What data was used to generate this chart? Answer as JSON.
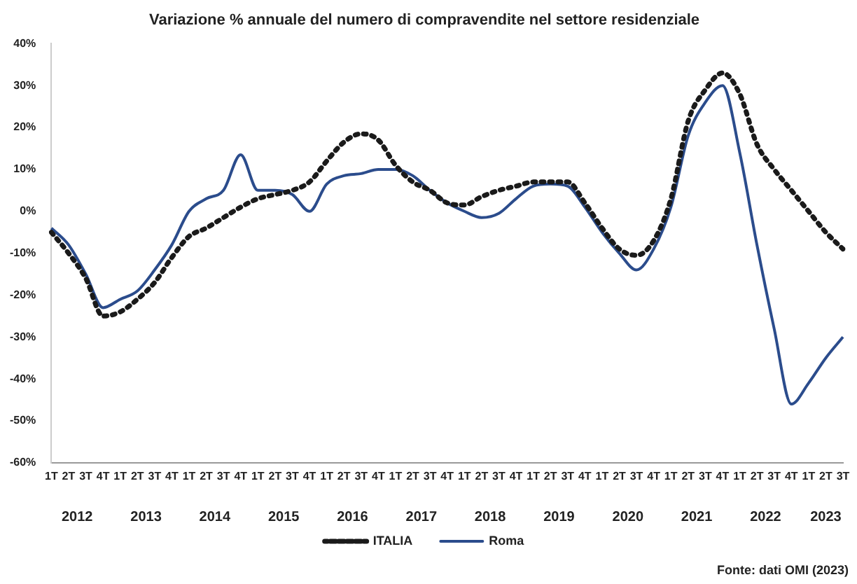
{
  "chart_data": {
    "type": "line",
    "title": "Variazione % annuale del numero di compravendite nel settore residenziale",
    "categories": [
      "1T",
      "2T",
      "3T",
      "4T",
      "1T",
      "2T",
      "3T",
      "4T",
      "1T",
      "2T",
      "3T",
      "4T",
      "1T",
      "2T",
      "3T",
      "4T",
      "1T",
      "2T",
      "3T",
      "4T",
      "1T",
      "2T",
      "3T",
      "4T",
      "1T",
      "2T",
      "3T",
      "4T",
      "1T",
      "2T",
      "3T",
      "4T",
      "1T",
      "2T",
      "3T",
      "4T",
      "1T",
      "2T",
      "3T",
      "4T",
      "1T",
      "2T",
      "3T",
      "4T",
      "1T",
      "2T",
      "3T"
    ],
    "series": [
      {
        "name": "ITALIA",
        "color": "#1a1a1a",
        "line_style": "dotted",
        "values": [
          -5,
          -10,
          -16,
          -25,
          -24,
          -21,
          -17,
          -11,
          -6,
          -4,
          -1.5,
          1,
          3,
          4,
          5,
          7,
          12,
          16.5,
          18.5,
          17,
          11,
          7,
          5,
          2,
          1.5,
          3.5,
          5,
          6,
          7,
          7,
          7,
          2,
          -4,
          -9,
          -10.5,
          -7,
          3,
          21.5,
          29,
          33,
          28,
          16,
          10,
          5,
          0,
          -5,
          -9
        ]
      },
      {
        "name": "Roma",
        "color": "#2b4c8c",
        "line_style": "solid",
        "values": [
          -4,
          -8,
          -15,
          -23,
          -21,
          -19,
          -14,
          -8,
          0,
          3,
          5,
          13.5,
          5,
          5,
          4,
          0,
          6.5,
          8.5,
          9,
          10,
          10,
          8.5,
          5,
          2,
          0,
          -1.5,
          -0.5,
          3,
          6,
          6.5,
          6,
          1,
          -5,
          -10,
          -14,
          -9,
          1,
          18,
          26,
          30,
          14,
          -8,
          -28,
          -46,
          -41,
          -35,
          -30
        ]
      }
    ],
    "ylim": [
      -60,
      40
    ],
    "yticks": [
      {
        "value": -60,
        "label": "-60%"
      },
      {
        "value": -50,
        "label": "-50%"
      },
      {
        "value": -40,
        "label": "-40%"
      },
      {
        "value": -30,
        "label": "-30%"
      },
      {
        "value": -20,
        "label": "-20%"
      },
      {
        "value": -10,
        "label": "-10%"
      },
      {
        "value": 0,
        "label": "0%"
      },
      {
        "value": 10,
        "label": "10%"
      },
      {
        "value": 20,
        "label": "20%"
      },
      {
        "value": 30,
        "label": "30%"
      },
      {
        "value": 40,
        "label": "40%"
      }
    ],
    "grid": false,
    "legend": "bottom",
    "marker": "none",
    "annotations": [
      "Fonte: dati OMI (2023)",
      "2012",
      "2013",
      "2014",
      "2015",
      "2016",
      "2017",
      "2018",
      "2019",
      "2020",
      "2021",
      "2022",
      "2023"
    ]
  }
}
